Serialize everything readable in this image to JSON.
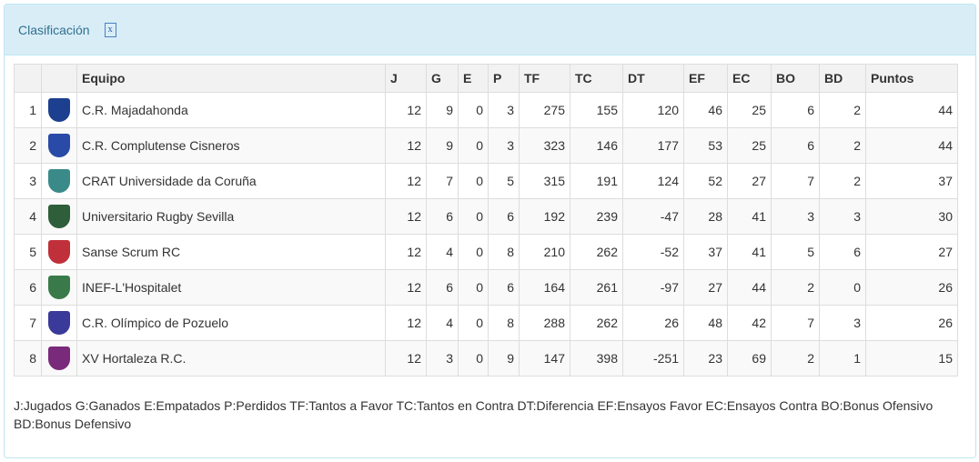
{
  "panel": {
    "title": "Clasificación",
    "export_icon": "excel-file-icon"
  },
  "columns": [
    "",
    "",
    "Equipo",
    "J",
    "G",
    "E",
    "P",
    "TF",
    "TC",
    "DT",
    "EF",
    "EC",
    "BO",
    "BD",
    "Puntos"
  ],
  "rows": [
    {
      "pos": "1",
      "team": "C.R. Majadahonda",
      "color": "#1d3f8f",
      "vals": [
        "12",
        "9",
        "0",
        "3",
        "275",
        "155",
        "120",
        "46",
        "25",
        "6",
        "2",
        "44"
      ]
    },
    {
      "pos": "2",
      "team": "C.R. Complutense Cisneros",
      "color": "#2a4aa8",
      "vals": [
        "12",
        "9",
        "0",
        "3",
        "323",
        "146",
        "177",
        "53",
        "25",
        "6",
        "2",
        "44"
      ]
    },
    {
      "pos": "3",
      "team": "CRAT Universidade da Coruña",
      "color": "#3a8a8a",
      "vals": [
        "12",
        "7",
        "0",
        "5",
        "315",
        "191",
        "124",
        "52",
        "27",
        "7",
        "2",
        "37"
      ]
    },
    {
      "pos": "4",
      "team": "Universitario Rugby Sevilla",
      "color": "#2e5e3a",
      "vals": [
        "12",
        "6",
        "0",
        "6",
        "192",
        "239",
        "-47",
        "28",
        "41",
        "3",
        "3",
        "30"
      ]
    },
    {
      "pos": "5",
      "team": "Sanse Scrum RC",
      "color": "#c0303a",
      "vals": [
        "12",
        "4",
        "0",
        "8",
        "210",
        "262",
        "-52",
        "37",
        "41",
        "5",
        "6",
        "27"
      ]
    },
    {
      "pos": "6",
      "team": "INEF-L'Hospitalet",
      "color": "#3a7a4a",
      "vals": [
        "12",
        "6",
        "0",
        "6",
        "164",
        "261",
        "-97",
        "27",
        "44",
        "2",
        "0",
        "26"
      ]
    },
    {
      "pos": "7",
      "team": "C.R. Olímpico de Pozuelo",
      "color": "#3a3a9a",
      "vals": [
        "12",
        "4",
        "0",
        "8",
        "288",
        "262",
        "26",
        "48",
        "42",
        "7",
        "3",
        "26"
      ]
    },
    {
      "pos": "8",
      "team": "XV Hortaleza R.C.",
      "color": "#7a2a7a",
      "vals": [
        "12",
        "3",
        "0",
        "9",
        "147",
        "398",
        "-251",
        "23",
        "69",
        "2",
        "1",
        "15"
      ]
    }
  ],
  "legend": "J:Jugados G:Ganados E:Empatados P:Perdidos TF:Tantos a Favor TC:Tantos en Contra DT:Diferencia EF:Ensayos Favor EC:Ensayos Contra BO:Bonus Ofensivo BD:Bonus Defensivo"
}
